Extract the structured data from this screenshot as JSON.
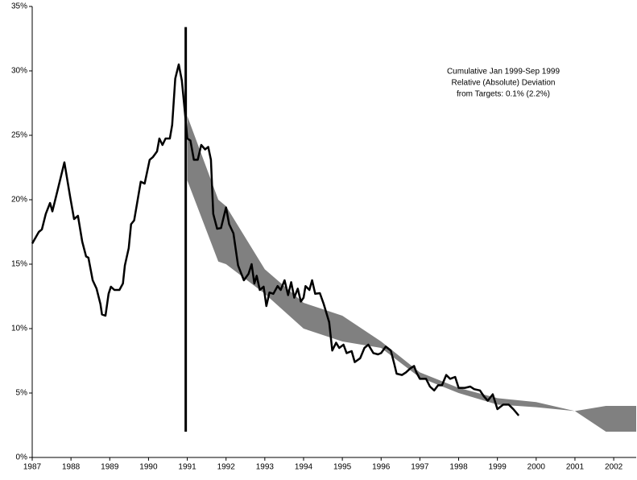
{
  "chart_data": {
    "type": "line-band",
    "annotation": [
      "Cumulative Jan 1999-Sep 1999",
      "Relative (Absolute) Deviation",
      "from Targets: 0.1% (2.2%)"
    ],
    "xlim": [
      1987,
      2002.58
    ],
    "xticks": [
      1987,
      1988,
      1989,
      1990,
      1991,
      1992,
      1993,
      1994,
      1995,
      1996,
      1997,
      1998,
      1999,
      2000,
      2001,
      2002
    ],
    "ylim": [
      0,
      35
    ],
    "yticks": [
      {
        "value": 0,
        "label": "0%"
      },
      {
        "value": 5,
        "label": "5%"
      },
      {
        "value": 10,
        "label": "10%"
      },
      {
        "value": 15,
        "label": "15%"
      },
      {
        "value": 20,
        "label": "20%"
      },
      {
        "value": 25,
        "label": "25%"
      },
      {
        "value": 30,
        "label": "30%"
      },
      {
        "value": 35,
        "label": "35%"
      }
    ],
    "band": {
      "color": "#808080",
      "x": [
        1991.0,
        1991.8,
        1992.0,
        1993.0,
        1994.0,
        1995.0,
        1996.0,
        1997.0,
        1998.0,
        1999.0,
        2000.0,
        2001.0,
        2001.8,
        2002.58
      ],
      "upper": [
        26.5,
        20.0,
        19.5,
        14.6,
        12.0,
        11.0,
        9.0,
        6.6,
        5.4,
        4.6,
        4.3,
        3.6,
        4.0,
        4.0
      ],
      "lower": [
        21.5,
        15.2,
        15.0,
        12.7,
        10.0,
        9.0,
        8.5,
        6.2,
        5.0,
        4.1,
        3.9,
        3.6,
        2.0,
        2.0
      ]
    },
    "vline": {
      "x": 1990.96,
      "y": [
        2.0,
        33.4
      ],
      "color": "#000000"
    },
    "line": {
      "color": "#000000",
      "x": [
        1987.0,
        1987.17,
        1987.25,
        1987.35,
        1987.46,
        1987.52,
        1987.66,
        1987.83,
        1987.98,
        1988.08,
        1988.18,
        1988.29,
        1988.39,
        1988.45,
        1988.56,
        1988.66,
        1988.76,
        1988.8,
        1988.89,
        1988.97,
        1989.03,
        1989.12,
        1989.25,
        1989.34,
        1989.39,
        1989.49,
        1989.55,
        1989.63,
        1989.8,
        1989.9,
        1990.03,
        1990.11,
        1990.22,
        1990.28,
        1990.36,
        1990.44,
        1990.55,
        1990.61,
        1990.69,
        1990.78,
        1990.86,
        1990.94,
        1991.0,
        1991.08,
        1991.17,
        1991.27,
        1991.36,
        1991.46,
        1991.54,
        1991.61,
        1991.67,
        1991.77,
        1991.87,
        1992.0,
        1992.08,
        1992.19,
        1992.31,
        1992.46,
        1992.58,
        1992.66,
        1992.73,
        1992.79,
        1992.87,
        1992.97,
        1993.04,
        1993.12,
        1993.22,
        1993.33,
        1993.41,
        1993.51,
        1993.6,
        1993.68,
        1993.76,
        1993.85,
        1993.93,
        1994.0,
        1994.05,
        1994.15,
        1994.22,
        1994.3,
        1994.42,
        1994.52,
        1994.66,
        1994.74,
        1994.84,
        1994.92,
        1995.03,
        1995.11,
        1995.24,
        1995.32,
        1995.46,
        1995.57,
        1995.67,
        1995.8,
        1995.92,
        1996.0,
        1996.12,
        1996.25,
        1996.34,
        1996.4,
        1996.54,
        1996.64,
        1996.75,
        1996.85,
        1996.91,
        1997.0,
        1997.16,
        1997.26,
        1997.37,
        1997.47,
        1997.57,
        1997.68,
        1997.78,
        1997.91,
        1998.0,
        1998.16,
        1998.3,
        1998.4,
        1998.55,
        1998.65,
        1998.75,
        1998.88,
        1999.0,
        1999.15,
        1999.29,
        1999.41,
        1999.55
      ],
      "values": [
        16.6,
        17.5,
        17.7,
        18.9,
        19.75,
        19.1,
        20.8,
        22.9,
        20.2,
        18.5,
        18.75,
        16.75,
        15.6,
        15.5,
        13.75,
        13.1,
        11.9,
        11.1,
        11.0,
        12.7,
        13.25,
        13.0,
        13.0,
        13.5,
        14.9,
        16.25,
        18.1,
        18.4,
        21.4,
        21.25,
        23.1,
        23.3,
        23.75,
        24.75,
        24.25,
        24.75,
        24.75,
        25.8,
        29.4,
        30.5,
        29.25,
        26.75,
        24.75,
        24.6,
        23.1,
        23.1,
        24.25,
        23.9,
        24.1,
        23.1,
        18.9,
        17.75,
        17.8,
        19.4,
        18.1,
        17.4,
        14.9,
        13.75,
        14.25,
        15.0,
        13.5,
        14.1,
        13.0,
        13.25,
        11.75,
        12.8,
        12.7,
        13.3,
        13.0,
        13.75,
        12.6,
        13.6,
        12.4,
        13.1,
        12.1,
        12.4,
        13.3,
        13.0,
        13.75,
        12.7,
        12.75,
        11.9,
        10.5,
        8.3,
        8.9,
        8.5,
        8.75,
        8.1,
        8.25,
        7.4,
        7.7,
        8.5,
        8.75,
        8.1,
        8.0,
        8.1,
        8.6,
        8.3,
        7.25,
        6.5,
        6.4,
        6.6,
        6.9,
        7.1,
        6.6,
        6.1,
        6.1,
        5.5,
        5.2,
        5.6,
        5.6,
        6.4,
        6.1,
        6.25,
        5.4,
        5.4,
        5.5,
        5.3,
        5.2,
        4.75,
        4.4,
        4.9,
        3.75,
        4.1,
        4.1,
        3.75,
        3.25
      ]
    }
  }
}
